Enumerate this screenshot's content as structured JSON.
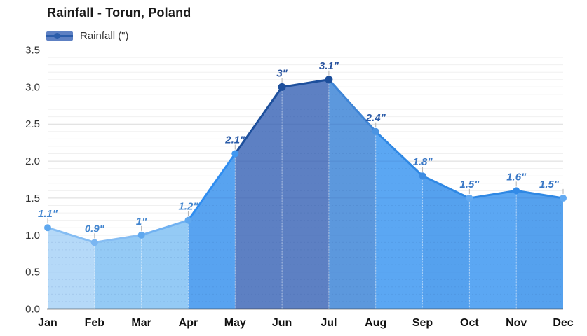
{
  "chart_data": {
    "type": "area",
    "title": "Rainfall - Torun, Poland",
    "legend_label": "Rainfall (\")",
    "legend_position": "top-left",
    "categories": [
      "Jan",
      "Feb",
      "Mar",
      "Apr",
      "May",
      "Jun",
      "Jul",
      "Aug",
      "Sep",
      "Oct",
      "Nov",
      "Dec"
    ],
    "values": [
      1.1,
      0.9,
      1.0,
      1.2,
      2.1,
      3.0,
      3.1,
      2.4,
      1.8,
      1.5,
      1.6,
      1.5
    ],
    "point_labels": [
      "1.1\"",
      "0.9\"",
      "1\"",
      "1.2\"",
      "2.1\"",
      "3\"",
      "3.1\"",
      "2.4\"",
      "1.8\"",
      "1.5\"",
      "1.6\"",
      "1.5\""
    ],
    "xlabel": "",
    "ylabel": "",
    "ylim": [
      0,
      3.5
    ],
    "ytick_labels": [
      "0.0",
      "0.5",
      "1.0",
      "1.5",
      "2.0",
      "2.5",
      "3.0",
      "3.5"
    ],
    "ytick_step": 0.5,
    "minor_tick_step": 0.1,
    "grid": "major and minor horizontal gridlines",
    "styles": {
      "segment_fills": [
        "#b5d9f8",
        "#94caf5",
        "#94caf5",
        "#58a3f0",
        "#5d80c3",
        "#5d80c3",
        "#5c98dd",
        "#5ba7f3",
        "#55a1ee",
        "#5ba7f3",
        "#55a1ee"
      ],
      "segment_lines": [
        "#85bdf3",
        "#85bdf3",
        "#70b1f1",
        "#2f8df0",
        "#1d4f9c",
        "#1d4f9c",
        "#3f85d6",
        "#2f88e4",
        "#2f88e4",
        "#2f88e4",
        "#2f88e4"
      ],
      "marker_colors": [
        "#5fa8ef",
        "#7ab6f2",
        "#5fa8ef",
        "#5fa8ef",
        "#3f97f0",
        "#1d4f9c",
        "#1d4f9c",
        "#4b94e2",
        "#3d8ce2",
        "#63aaf2",
        "#338be8",
        "#63aaf2"
      ],
      "label_colors": [
        "#4285cf",
        "#4285cf",
        "#4285cf",
        "#4285cf",
        "#2a5ba8",
        "#27529e",
        "#27529e",
        "#2a5ba8",
        "#3a78c6",
        "#3a78c6",
        "#3a78c6",
        "#3a78c6"
      ],
      "grid_major": "#dadada",
      "grid_minor": "#f0f0f0",
      "axis_line": "#333333",
      "ytick_label_color": "#333333",
      "xtick_label_color": "#111111",
      "title_color": "#1a1a1a",
      "legend_text_color": "#333333",
      "legend_swatch_fill": "#5d80c3",
      "legend_swatch_accent": "#2a5caa",
      "connector_tick_color": "#b3b3b3",
      "background": "#ffffff"
    }
  }
}
